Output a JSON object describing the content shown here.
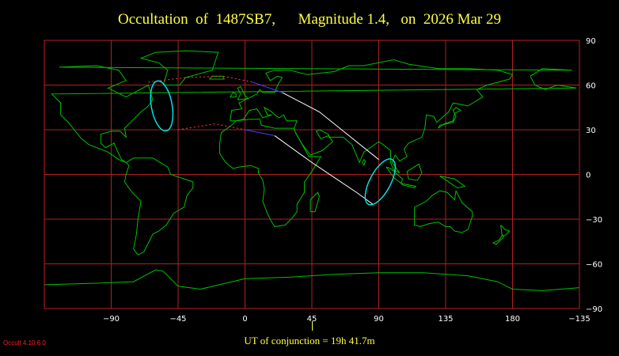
{
  "title": {
    "event": "Occultation  of  1487SB7,",
    "magnitude": "Magnitude 1.4,",
    "date": "on  2026 Mar 29"
  },
  "map": {
    "projection": "equirectangular",
    "lon_range": [
      -135,
      225
    ],
    "lat_range": [
      -90,
      90
    ],
    "x_ticks": [
      "−90",
      "−45",
      "0",
      "45",
      "90",
      "135",
      "180",
      "−135"
    ],
    "y_ticks": [
      "90",
      "60",
      "30",
      "0",
      "−30",
      "−60",
      "−90"
    ],
    "colors": {
      "background": "#000000",
      "grid": "#b02020",
      "coast": "#00c000",
      "frame": "#c02020",
      "path": "#ffffff",
      "ellipse": "#00e0e0",
      "dotted": "#ff4040",
      "blue": "#4040ff"
    }
  },
  "shadow_path": {
    "north_limit": [
      [
        -45,
        30
      ],
      [
        -20,
        34
      ],
      [
        0,
        30
      ],
      [
        20,
        26
      ],
      [
        45,
        8
      ],
      [
        60,
        -2
      ],
      [
        75,
        -12
      ],
      [
        86,
        -20
      ]
    ],
    "south_limit": [
      [
        -65,
        62
      ],
      [
        -40,
        65
      ],
      [
        -15,
        66
      ],
      [
        5,
        62
      ],
      [
        25,
        55
      ],
      [
        50,
        42
      ],
      [
        70,
        26
      ],
      [
        90,
        10
      ]
    ],
    "ellipse_start": {
      "center": [
        -56,
        46
      ],
      "semi_lon": 7,
      "semi_lat": 17,
      "tilt": -10
    },
    "ellipse_end": {
      "center": [
        91,
        -5
      ],
      "semi_lon": 7,
      "semi_lat": 17,
      "tilt": 28
    }
  },
  "footer": {
    "conjunction": "UT of conjunction = 19h 41.7m",
    "version": "Occult 4.10.6.0"
  }
}
